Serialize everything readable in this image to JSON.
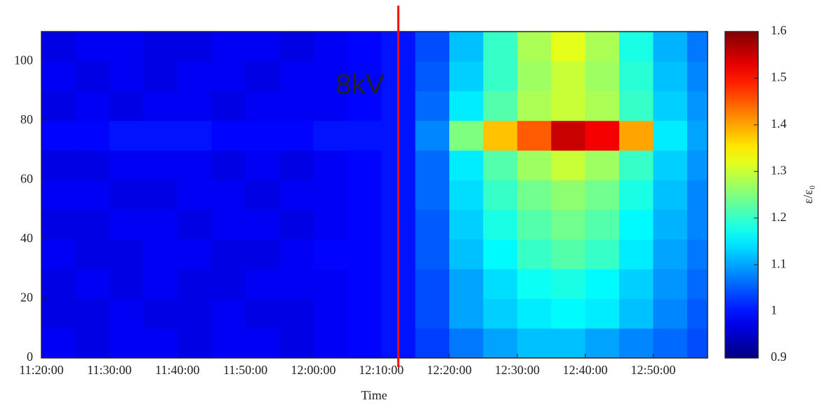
{
  "chart_data": {
    "type": "heatmap",
    "x_label": "Time",
    "colorbar_label": "ε/ε₀",
    "xlim": [
      "11:20:00",
      "12:58:00"
    ],
    "xticks": [
      "11:20:00",
      "11:30:00",
      "11:40:00",
      "11:50:00",
      "12:00:00",
      "12:10:00",
      "12:20:00",
      "12:30:00",
      "12:40:00",
      "12:50:00"
    ],
    "ylim": [
      0,
      110
    ],
    "yticks": [
      0,
      20,
      40,
      60,
      80,
      100
    ],
    "zlim": [
      0.9,
      1.6
    ],
    "zticks": [
      0.9,
      1,
      1.1,
      1.2,
      1.3,
      1.4,
      1.5,
      1.6
    ],
    "colormap": "jet",
    "x_edges": [
      "11:20:00",
      "11:25:00",
      "11:30:00",
      "11:35:00",
      "11:40:00",
      "11:45:00",
      "11:50:00",
      "11:55:00",
      "12:00:00",
      "12:05:00",
      "12:10:00",
      "12:15:00",
      "12:20:00",
      "12:25:00",
      "12:30:00",
      "12:35:00",
      "12:40:00",
      "12:45:00",
      "12:50:00",
      "12:55:00",
      "12:58:00"
    ],
    "y_edges": [
      0,
      10,
      20,
      30,
      40,
      50,
      60,
      70,
      80,
      90,
      100,
      110
    ],
    "values": [
      [
        0.98,
        0.97,
        0.98,
        0.98,
        0.97,
        0.98,
        0.98,
        0.97,
        0.98,
        0.99,
        1.0,
        1.03,
        1.07,
        1.1,
        1.12,
        1.12,
        1.1,
        1.08,
        1.06,
        1.04
      ],
      [
        0.97,
        0.97,
        0.98,
        0.97,
        0.97,
        0.98,
        0.97,
        0.97,
        0.98,
        0.99,
        1.0,
        1.04,
        1.1,
        1.13,
        1.15,
        1.16,
        1.15,
        1.12,
        1.08,
        1.05
      ],
      [
        0.97,
        0.98,
        0.97,
        0.98,
        0.97,
        0.97,
        0.98,
        0.98,
        0.98,
        0.99,
        1.0,
        1.04,
        1.1,
        1.14,
        1.17,
        1.18,
        1.16,
        1.13,
        1.09,
        1.06
      ],
      [
        0.98,
        0.97,
        0.97,
        0.98,
        0.98,
        0.97,
        0.97,
        0.98,
        0.99,
        0.99,
        1.0,
        1.05,
        1.12,
        1.16,
        1.2,
        1.22,
        1.2,
        1.15,
        1.1,
        1.07
      ],
      [
        0.97,
        0.97,
        0.98,
        0.98,
        0.97,
        0.98,
        0.98,
        0.97,
        0.98,
        0.99,
        1.0,
        1.05,
        1.13,
        1.18,
        1.22,
        1.24,
        1.22,
        1.16,
        1.11,
        1.08
      ],
      [
        0.98,
        0.98,
        0.97,
        0.97,
        0.98,
        0.98,
        0.97,
        0.98,
        0.98,
        0.99,
        1.0,
        1.06,
        1.14,
        1.2,
        1.24,
        1.26,
        1.24,
        1.18,
        1.12,
        1.08
      ],
      [
        0.97,
        0.97,
        0.98,
        0.98,
        0.98,
        0.97,
        0.98,
        0.97,
        0.98,
        0.99,
        1.0,
        1.06,
        1.15,
        1.22,
        1.27,
        1.3,
        1.27,
        1.2,
        1.13,
        1.09
      ],
      [
        0.99,
        0.99,
        1.0,
        1.0,
        1.0,
        0.99,
        0.99,
        0.99,
        1.0,
        1.0,
        1.0,
        1.08,
        1.25,
        1.38,
        1.45,
        1.55,
        1.52,
        1.4,
        1.15,
        1.1
      ],
      [
        0.97,
        0.98,
        0.97,
        0.98,
        0.98,
        0.97,
        0.98,
        0.98,
        0.98,
        0.99,
        1.0,
        1.06,
        1.15,
        1.22,
        1.28,
        1.3,
        1.28,
        1.2,
        1.13,
        1.09
      ],
      [
        0.98,
        0.97,
        0.98,
        0.97,
        0.98,
        0.98,
        0.97,
        0.98,
        0.98,
        0.99,
        1.0,
        1.05,
        1.13,
        1.2,
        1.27,
        1.3,
        1.27,
        1.19,
        1.12,
        1.08
      ],
      [
        0.97,
        0.98,
        0.98,
        0.97,
        0.97,
        0.98,
        0.98,
        0.97,
        0.98,
        0.99,
        1.0,
        1.04,
        1.12,
        1.2,
        1.28,
        1.32,
        1.28,
        1.18,
        1.11,
        1.07
      ]
    ],
    "annotations": [
      {
        "text": "8kV",
        "x": "12:12:30",
        "color": "#ee1111"
      }
    ]
  }
}
